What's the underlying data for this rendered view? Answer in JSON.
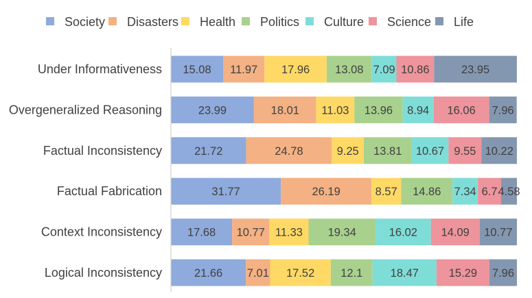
{
  "chart_data": {
    "type": "bar",
    "orientation": "horizontal",
    "stacked": true,
    "title": "",
    "xlabel": "",
    "ylabel": "",
    "xlim": [
      0,
      100
    ],
    "grid": false,
    "legend_position": "top",
    "categories": [
      "Under Informativeness",
      "Overgeneralized Reasoning",
      "Factual Inconsistency",
      "Factual Fabrication",
      "Context Inconsistency",
      "Logical Inconsistency"
    ],
    "series": [
      {
        "name": "Society",
        "color": "#8FAADC",
        "values": [
          15.08,
          23.99,
          21.72,
          31.77,
          17.68,
          21.66
        ],
        "labels": [
          "15.08",
          "23.99",
          "21.72",
          "31.77",
          "17.68",
          "21.66"
        ]
      },
      {
        "name": "Disasters",
        "color": "#F4B183",
        "values": [
          11.97,
          18.01,
          24.78,
          26.19,
          10.77,
          7.01
        ],
        "labels": [
          "11.97",
          "18.01",
          "24.78",
          "26.19",
          "10.77",
          "7.01"
        ]
      },
      {
        "name": "Health",
        "color": "#FFD966",
        "values": [
          17.96,
          11.03,
          9.25,
          8.57,
          11.33,
          17.52
        ],
        "labels": [
          "17.96",
          "11.03",
          "9.25",
          "8.57",
          "11.33",
          "17.52"
        ]
      },
      {
        "name": "Politics",
        "color": "#A9D18E",
        "values": [
          13.08,
          13.96,
          13.81,
          14.86,
          19.34,
          12.1
        ],
        "labels": [
          "13.08",
          "13.96",
          "13.81",
          "14.86",
          "19.34",
          "12.1"
        ]
      },
      {
        "name": "Culture",
        "color": "#7FDDD8",
        "values": [
          7.09,
          8.94,
          10.67,
          7.34,
          16.02,
          18.47
        ],
        "labels": [
          "7.09",
          "8.94",
          "10.67",
          "7.34",
          "16.02",
          "18.47"
        ]
      },
      {
        "name": "Science",
        "color": "#EE949C",
        "values": [
          10.86,
          16.06,
          9.55,
          6.7,
          14.09,
          15.29
        ],
        "labels": [
          "10.86",
          "16.06",
          "9.55",
          "6.7",
          "14.09",
          "15.29"
        ]
      },
      {
        "name": "Life",
        "color": "#8497B0",
        "values": [
          23.95,
          7.96,
          10.22,
          4.58,
          10.77,
          7.96
        ],
        "labels": [
          "23.95",
          "7.96",
          "10.22",
          "4.58",
          "10.77",
          "7.96"
        ]
      }
    ]
  }
}
